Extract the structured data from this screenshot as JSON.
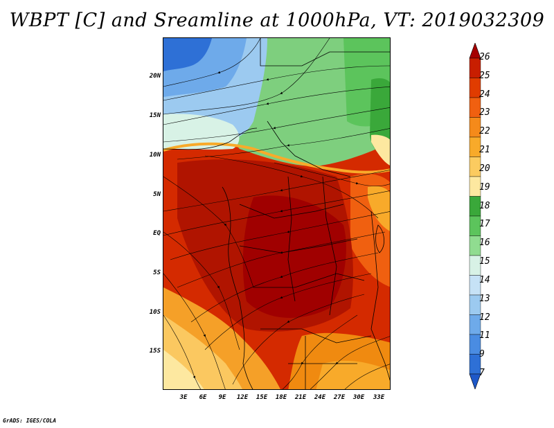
{
  "title": "WBPT [C] and Sreamline at 1000hPa, VT: 2019032309",
  "lat_labels": [
    "20N",
    "15N",
    "10N",
    "5N",
    "EQ",
    "5S",
    "10S",
    "15S"
  ],
  "lon_labels": [
    "3E",
    "6E",
    "9E",
    "12E",
    "15E",
    "18E",
    "21E",
    "24E",
    "27E",
    "30E",
    "33E"
  ],
  "colorbar": {
    "levels": [
      "26",
      "25",
      "24",
      "23",
      "22",
      "21",
      "20",
      "19",
      "18",
      "17",
      "16",
      "15",
      "14",
      "13",
      "12",
      "11",
      "9",
      "7"
    ],
    "colors": [
      "#a50000",
      "#c81e00",
      "#e03c00",
      "#f06010",
      "#f58a1a",
      "#f8aa2a",
      "#fbcb60",
      "#fde8a0",
      "#3aa83a",
      "#5cc45c",
      "#90dc90",
      "#d8f2e6",
      "#c6e2f6",
      "#9ccaf0",
      "#6eaaea",
      "#4a8ce2",
      "#2e70d6",
      "#1e58c8"
    ]
  },
  "footer": "GrADS: IGES/COLA"
}
